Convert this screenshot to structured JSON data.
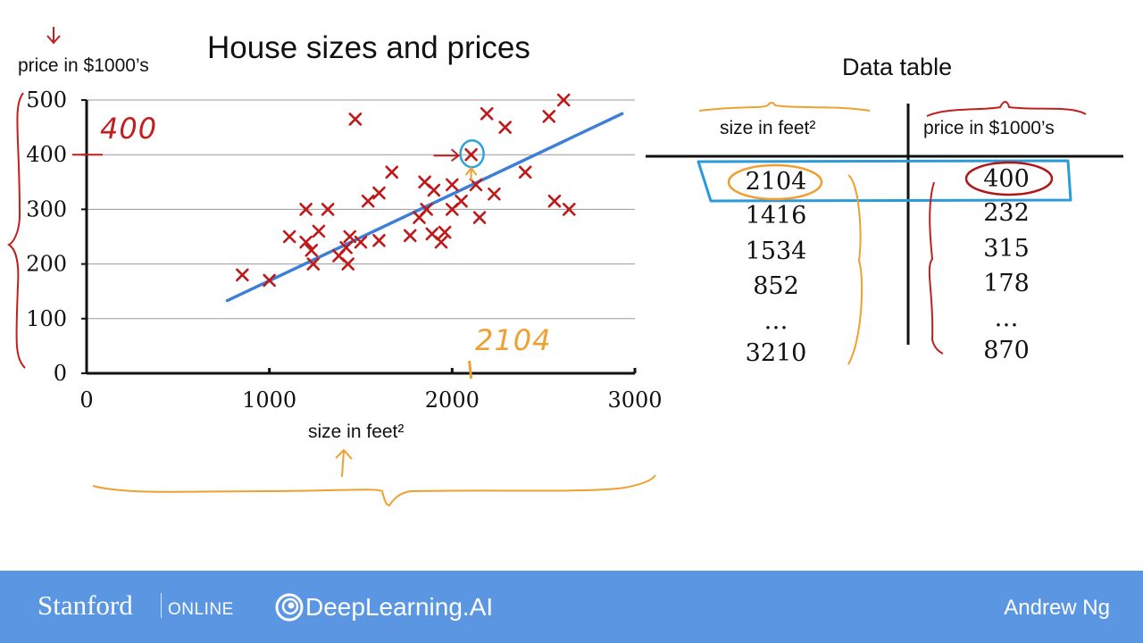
{
  "slide": {
    "title": "House sizes and prices",
    "footer": {
      "stanford": "Stanford",
      "online": "ONLINE",
      "deeplearning": "DeepLearning.AI",
      "author": "Andrew Ng"
    },
    "annotations": {
      "price_400": "400",
      "size_2104": "2104"
    }
  },
  "chart_data": {
    "type": "scatter",
    "title": "House sizes and prices",
    "xlabel": "size in feet²",
    "ylabel": "price in $1000’s",
    "xlim": [
      0,
      3000
    ],
    "ylim": [
      0,
      500
    ],
    "xticks": [
      "0",
      "1000",
      "2000",
      "3000"
    ],
    "yticks": [
      "0",
      "100",
      "200",
      "300",
      "400",
      "500"
    ],
    "grid": "horizontal",
    "marker_color": "#c01818",
    "points": [
      {
        "x": 852,
        "y": 180
      },
      {
        "x": 1000,
        "y": 170
      },
      {
        "x": 1110,
        "y": 250
      },
      {
        "x": 1200,
        "y": 300
      },
      {
        "x": 1200,
        "y": 240
      },
      {
        "x": 1230,
        "y": 225
      },
      {
        "x": 1240,
        "y": 200
      },
      {
        "x": 1270,
        "y": 260
      },
      {
        "x": 1320,
        "y": 300
      },
      {
        "x": 1380,
        "y": 215
      },
      {
        "x": 1420,
        "y": 230
      },
      {
        "x": 1430,
        "y": 200
      },
      {
        "x": 1440,
        "y": 250
      },
      {
        "x": 1470,
        "y": 465
      },
      {
        "x": 1500,
        "y": 240
      },
      {
        "x": 1540,
        "y": 315
      },
      {
        "x": 1600,
        "y": 330
      },
      {
        "x": 1600,
        "y": 243
      },
      {
        "x": 1670,
        "y": 368
      },
      {
        "x": 1770,
        "y": 252
      },
      {
        "x": 1820,
        "y": 285
      },
      {
        "x": 1850,
        "y": 350
      },
      {
        "x": 1860,
        "y": 300
      },
      {
        "x": 1890,
        "y": 255
      },
      {
        "x": 1900,
        "y": 335
      },
      {
        "x": 1940,
        "y": 240
      },
      {
        "x": 1960,
        "y": 258
      },
      {
        "x": 2000,
        "y": 345
      },
      {
        "x": 2000,
        "y": 300
      },
      {
        "x": 2050,
        "y": 315
      },
      {
        "x": 2104,
        "y": 400
      },
      {
        "x": 2130,
        "y": 345
      },
      {
        "x": 2150,
        "y": 285
      },
      {
        "x": 2190,
        "y": 475
      },
      {
        "x": 2230,
        "y": 328
      },
      {
        "x": 2290,
        "y": 450
      },
      {
        "x": 2400,
        "y": 368
      },
      {
        "x": 2530,
        "y": 470
      },
      {
        "x": 2560,
        "y": 315
      },
      {
        "x": 2610,
        "y": 500
      },
      {
        "x": 2640,
        "y": 300
      }
    ],
    "fit_line": {
      "x": [
        770,
        2930
      ],
      "y": [
        133,
        475
      ],
      "color": "#3d7fd6"
    },
    "highlight_point": {
      "x": 2104,
      "y": 400
    }
  },
  "data_table": {
    "title": "Data table",
    "columns": [
      "size in feet²",
      "price in $1000’s"
    ],
    "rows": [
      [
        "2104",
        "400"
      ],
      [
        "1416",
        "232"
      ],
      [
        "1534",
        "315"
      ],
      [
        "852",
        "178"
      ],
      [
        "…",
        "…"
      ],
      [
        "3210",
        "870"
      ]
    ]
  }
}
